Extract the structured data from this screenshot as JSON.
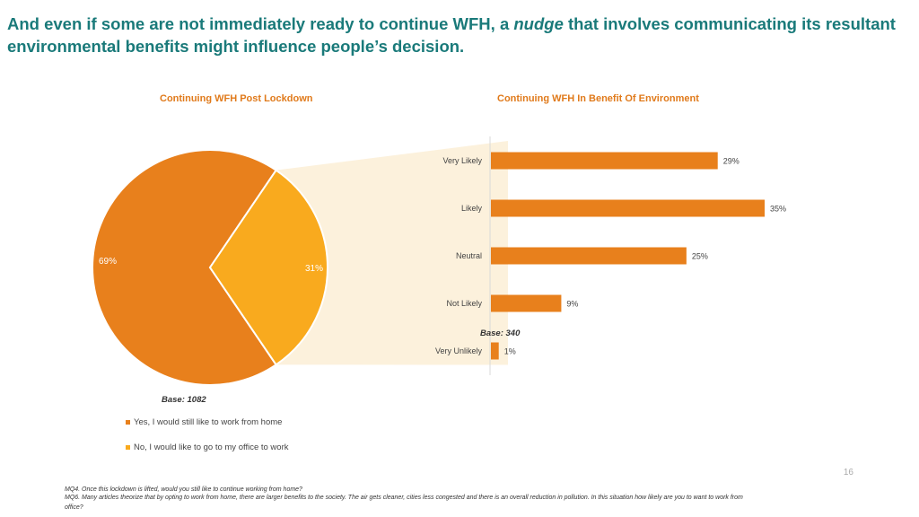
{
  "title": {
    "part1": "And even if some are not immediately ready to continue WFH, a ",
    "emphasis": "nudge",
    "part2": " that involves communicating its resultant environmental benefits might influence people’s decision."
  },
  "colors": {
    "title": "#1a7a7a",
    "yes": "#e8801c",
    "no": "#f9aa1e",
    "bar": "#e8801c",
    "connector": "#fcf1dc",
    "chart_title": "#e07a1b"
  },
  "chart_data": [
    {
      "type": "pie",
      "title": "Continuing WFH Post Lockdown",
      "slices": [
        {
          "label": "Yes, I would still like to work from home",
          "value": 69,
          "data_label": "69%"
        },
        {
          "label": "No, I would like to go to my office to work",
          "value": 31,
          "data_label": "31%"
        }
      ],
      "base": "Base: 1082",
      "legend": [
        "Yes, I would still like to work from home",
        "No, I would like to go to my office to work"
      ]
    },
    {
      "type": "bar",
      "orientation": "horizontal",
      "title": "Continuing WFH In Benefit Of Environment",
      "categories": [
        "Very Likely",
        "Likely",
        "Neutral",
        "Not Likely",
        "Very Unlikely"
      ],
      "values": [
        29,
        35,
        25,
        9,
        1
      ],
      "data_labels": [
        "29%",
        "35%",
        "25%",
        "9%",
        "1%"
      ],
      "base": "Base: 340",
      "xlim": [
        0,
        35
      ]
    }
  ],
  "page_number": "16",
  "footnotes": [
    "MQ4. Once this lockdown is lifted, would you still like to continue working from home?",
    "MQ6. Many articles theorize that by opting to work from home, there are larger benefits to the society. The air gets cleaner, cities less congested and there is an overall reduction in pollution. In this situation how likely are you to want to work from office?"
  ]
}
